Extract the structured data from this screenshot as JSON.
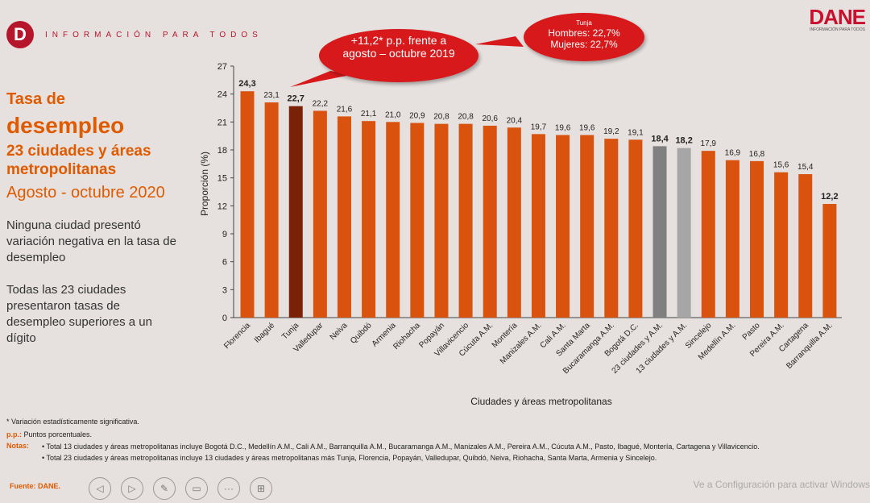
{
  "header": {
    "logo_letter": "D",
    "tagline": "INFORMACIÓN PARA TODOS",
    "brand": "DANE",
    "brand_sub": "INFORMACIÓN PARA TODOS"
  },
  "left": {
    "title1": "Tasa de",
    "title2": "desempleo",
    "title3": "23 ciudades y áreas metropolitanas",
    "title4": "Agosto - octubre 2020",
    "text1": "Ninguna ciudad presentó variación negativa en la tasa de desempleo",
    "text2": "Todas las 23 ciudades presentaron tasas de desempleo superiores a un dígito"
  },
  "bubbles": {
    "main": "+11,2* p.p. frente a agosto – octubre 2019",
    "tunja_title": "Tunja",
    "tunja_h": "Hombres: 22,7%",
    "tunja_m": "Mujeres: 22,7%"
  },
  "footnotes": {
    "star": "* Variación estadísticamente significativa.",
    "pp_label": "p.p.:",
    "pp": " Puntos porcentuales.",
    "notas_label": "Notas:",
    "n1": "• Total 13 ciudades y áreas metropolitanas incluye Bogotá D.C., Medellín A.M., Cali A.M., Barranquilla A.M., Bucaramanga A.M., Manizales A.M., Pereira A.M., Cúcuta A.M., Pasto, Ibagué, Montería, Cartagena y Villavicencio.",
    "n2": "• Total 23 ciudades y áreas metropolitanas incluye 13 ciudades y áreas metropolitanas más Tunja, Florencia, Popayán, Valledupar, Quibdó, Neiva, Riohacha, Santa Marta, Armenia y Sincelejo.",
    "fuente": "Fuente: DANE."
  },
  "watermark": "Ve a Configuración para activar Windows",
  "colors": {
    "bar": "#d9530f",
    "highlight": "#7a2208",
    "total23": "#808080",
    "total13": "#a6a6a6"
  },
  "chart_data": {
    "type": "bar",
    "title": "",
    "xlabel": "Ciudades y áreas metropolitanas",
    "ylabel": "Proporción (%)",
    "ylim": [
      0,
      27
    ],
    "yticks": [
      0,
      3,
      6,
      9,
      12,
      15,
      18,
      21,
      24,
      27
    ],
    "grid": false,
    "categories": [
      "Florencia",
      "Ibagué",
      "Tunja",
      "Valledupar",
      "Neiva",
      "Quibdó",
      "Armenia",
      "Riohacha",
      "Popayán",
      "Villavicencio",
      "Cúcuta A.M.",
      "Montería",
      "Manizales A.M.",
      "Cali A.M.",
      "Santa Marta",
      "Bucaramanga A.M.",
      "Bogotá D.C.",
      "23 ciudades y A.M.",
      "13 ciudades y A.M.",
      "Sincelejo",
      "Medellín A.M.",
      "Pasto",
      "Pereira A.M.",
      "Cartagena",
      "Barranquilla A.M."
    ],
    "values": [
      24.3,
      23.1,
      22.7,
      22.2,
      21.6,
      21.1,
      21.0,
      20.9,
      20.8,
      20.8,
      20.6,
      20.4,
      19.7,
      19.6,
      19.6,
      19.2,
      19.1,
      18.4,
      18.2,
      17.9,
      16.9,
      16.8,
      15.6,
      15.4,
      12.2
    ],
    "labels": [
      "24,3",
      "23,1",
      "22,7",
      "22,2",
      "21,6",
      "21,1",
      "21,0",
      "20,9",
      "20,8",
      "20,8",
      "20,6",
      "20,4",
      "19,7",
      "19,6",
      "19,6",
      "19,2",
      "19,1",
      "18,4",
      "18,2",
      "17,9",
      "16,9",
      "16,8",
      "15,6",
      "15,4",
      "12,2"
    ],
    "bold_labels": [
      "Florencia",
      "Tunja",
      "23 ciudades y A.M.",
      "13 ciudades y A.M.",
      "Barranquilla A.M."
    ]
  }
}
